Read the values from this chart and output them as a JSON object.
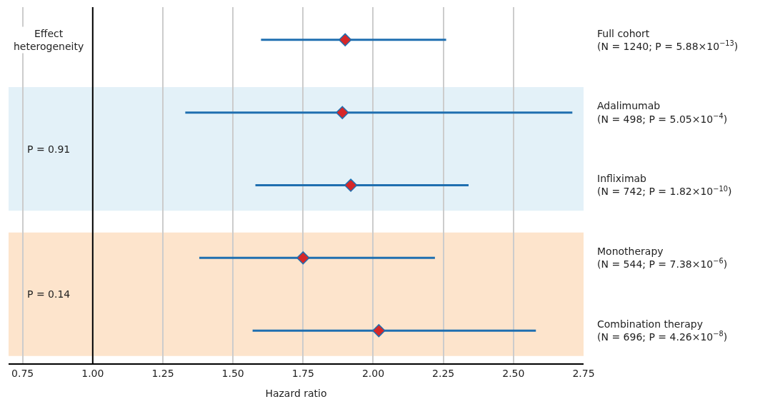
{
  "chart_data": {
    "type": "scatter",
    "orientation": "horizontal",
    "xlabel": "Hazard ratio",
    "categories": [
      "Full cohort\n(N = 1240; P = 5.88×10$^{−13}$)",
      "Adalimumab\n(N = 498; P = 5.05×10$^{−4}$)",
      "Infliximab\n(N = 742; P = 1.82×10$^{−10}$)",
      "Monotherapy\n(N = 544; P = 7.38×10$^{−6}$)",
      "Combination therapy\n(N = 696; P = 4.26×10$^{−8}$)"
    ],
    "series": [
      {
        "color": "#1f6fb0",
        "colors": [
          "#d62728",
          "#d62728",
          "#d62728",
          "#d62728",
          "#d62728"
        ],
        "values": [
          1.9,
          1.89,
          1.92,
          1.75,
          2.02
        ],
        "errors": [
          [
            1.6,
            2.26
          ],
          [
            1.33,
            2.71
          ],
          [
            1.58,
            2.34
          ],
          [
            1.38,
            2.22
          ],
          [
            1.57,
            2.58
          ]
        ]
      }
    ],
    "xlim": [
      0.7,
      2.75
    ],
    "xticks": [
      0.75,
      {
        "value": 1.0,
        "label": "1.00"
      },
      1.25,
      {
        "value": 1.5,
        "label": "1.50"
      },
      1.75,
      {
        "value": 2.0,
        "label": "2.00"
      },
      2.25,
      {
        "value": 2.5,
        "label": "2.50"
      },
      2.75
    ],
    "grid": "x",
    "marker": "diamond",
    "ref_lines": [
      {
        "axis": "x",
        "value": 1.0,
        "color": "#000000"
      }
    ],
    "bands": [
      {
        "axis": "y",
        "from": "Adalimumab\n(N = 498; P = 5.05×10$^{−4}$)",
        "to": "Infliximab\n(N = 742; P = 1.82×10$^{−10}$)",
        "label": "P = 0.91",
        "color": "#e3f1f8"
      },
      {
        "axis": "y",
        "from": "Monotherapy\n(N = 544; P = 7.38×10$^{−6}$)",
        "to": "Combination therapy\n(N = 696; P = 4.26×10$^{−8}$)",
        "label": "P = 0.14",
        "color": "#fde4cc"
      }
    ],
    "annotations": [
      "Effect\nheterogeneity"
    ]
  }
}
